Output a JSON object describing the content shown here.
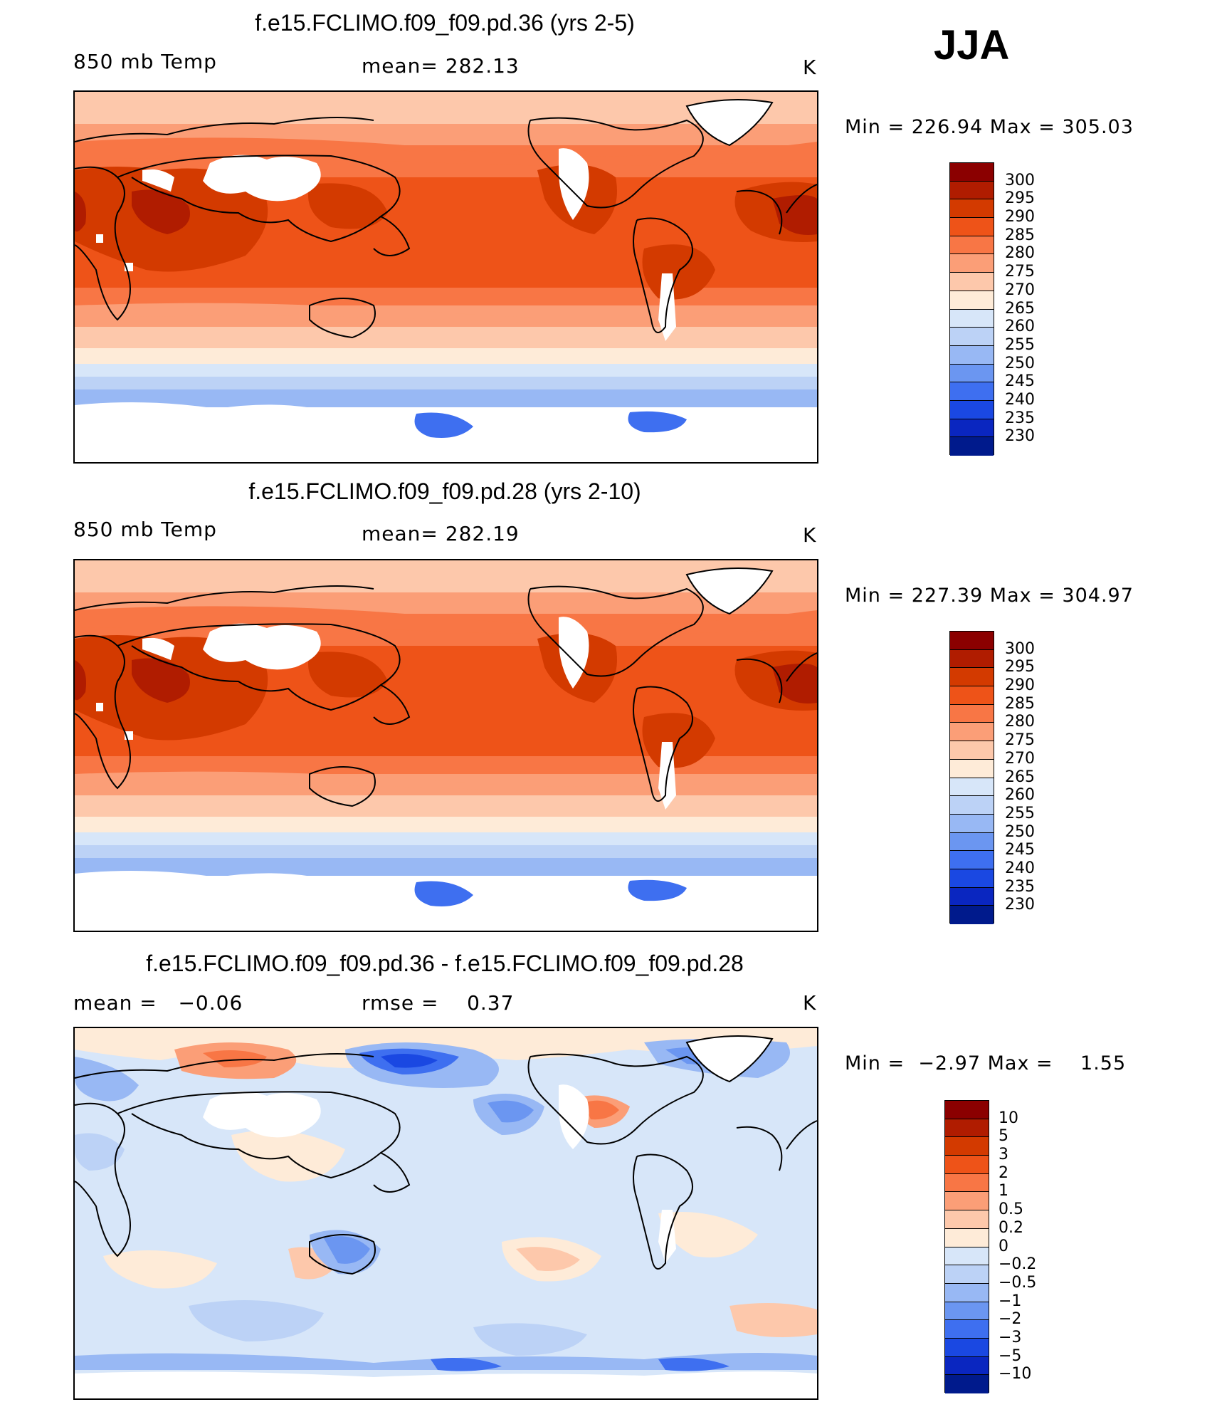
{
  "season": "JJA",
  "panels": [
    {
      "title": "f.e15.FCLIMO.f09_f09.pd.36 (yrs 2-5)",
      "variable": "850 mb Temp",
      "stat": "mean= 282.13",
      "units": "K",
      "min_label": "Min",
      "min_value": "226.94",
      "max_label": "Max",
      "max_value": "305.03"
    },
    {
      "title": "f.e15.FCLIMO.f09_f09.pd.28 (yrs 2-10)",
      "variable": "850 mb Temp",
      "stat": "mean= 282.19",
      "units": "K",
      "min_label": "Min",
      "min_value": "227.39",
      "max_label": "Max",
      "max_value": "304.97"
    },
    {
      "title": "f.e15.FCLIMO.f09_f09.pd.36 - f.e15.FCLIMO.f09_f09.pd.28",
      "stat_left": "mean =   −0.06",
      "stat": "rmse =    0.37",
      "units": "K",
      "min_label": "Min",
      "min_value": "−2.97",
      "max_label": "Max",
      "max_value": "1.55"
    }
  ],
  "colorbars": {
    "temperature": {
      "labels": [
        "300",
        "295",
        "290",
        "285",
        "280",
        "275",
        "270",
        "265",
        "260",
        "255",
        "250",
        "245",
        "240",
        "235",
        "230"
      ],
      "colors": [
        "#8b0000",
        "#b01c00",
        "#d33a00",
        "#ee5318",
        "#f87645",
        "#fb9e77",
        "#fdc8ab",
        "#feebd8",
        "#d7e6f9",
        "#bcd2f6",
        "#98b8f4",
        "#6b96f1",
        "#3e6ff0",
        "#1a48e2",
        "#0a26c0",
        "#001a8c"
      ]
    },
    "difference": {
      "labels": [
        "10",
        "5",
        "3",
        "2",
        "1",
        "0.5",
        "0.2",
        "0",
        "−0.2",
        "−0.5",
        "−1",
        "−2",
        "−3",
        "−5",
        "−10"
      ],
      "colors": [
        "#8b0000",
        "#b01c00",
        "#d33a00",
        "#ee5318",
        "#f87645",
        "#fb9e77",
        "#fdc8ab",
        "#feebd8",
        "#d7e6f9",
        "#bcd2f6",
        "#98b8f4",
        "#6b96f1",
        "#3e6ff0",
        "#1a48e2",
        "#0a26c0",
        "#001a8c"
      ]
    }
  }
}
